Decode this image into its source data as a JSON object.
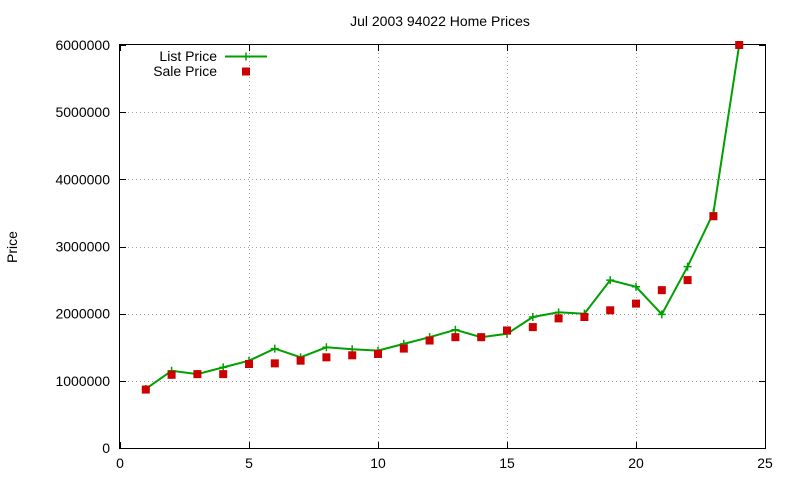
{
  "chart_data": {
    "type": "line",
    "title": "Jul 2003 94022 Home Prices",
    "xlabel": "",
    "ylabel": "Price",
    "xlim": [
      0,
      25
    ],
    "ylim": [
      0,
      6000000
    ],
    "x_ticks": [
      "0",
      "5",
      "10",
      "15",
      "20",
      "25"
    ],
    "y_ticks": [
      "0",
      "1000000",
      "2000000",
      "3000000",
      "4000000",
      "5000000",
      "6000000"
    ],
    "grid": true,
    "legend_position": "top-left",
    "series": [
      {
        "name": "List Price",
        "style": "line-with-plus-markers",
        "color": "#00a000",
        "x": [
          1,
          2,
          3,
          4,
          5,
          6,
          7,
          8,
          9,
          10,
          11,
          12,
          13,
          14,
          15,
          16,
          17,
          18,
          19,
          20,
          21,
          22,
          23,
          24
        ],
        "y": [
          880000,
          1150000,
          1100000,
          1200000,
          1300000,
          1480000,
          1350000,
          1500000,
          1470000,
          1450000,
          1550000,
          1650000,
          1760000,
          1650000,
          1700000,
          1950000,
          2020000,
          2000000,
          2500000,
          2400000,
          1990000,
          2700000,
          3500000,
          6000000
        ]
      },
      {
        "name": "Sale Price",
        "style": "square-markers",
        "color": "#cc0000",
        "x": [
          1,
          2,
          3,
          4,
          5,
          6,
          7,
          8,
          9,
          10,
          11,
          12,
          13,
          14,
          15,
          16,
          17,
          18,
          19,
          20,
          21,
          22,
          23,
          24
        ],
        "y": [
          870000,
          1090000,
          1100000,
          1100000,
          1250000,
          1260000,
          1300000,
          1350000,
          1380000,
          1400000,
          1480000,
          1600000,
          1650000,
          1650000,
          1750000,
          1800000,
          1930000,
          1950000,
          2050000,
          2150000,
          2350000,
          2500000,
          3450000,
          6000000
        ]
      }
    ]
  }
}
